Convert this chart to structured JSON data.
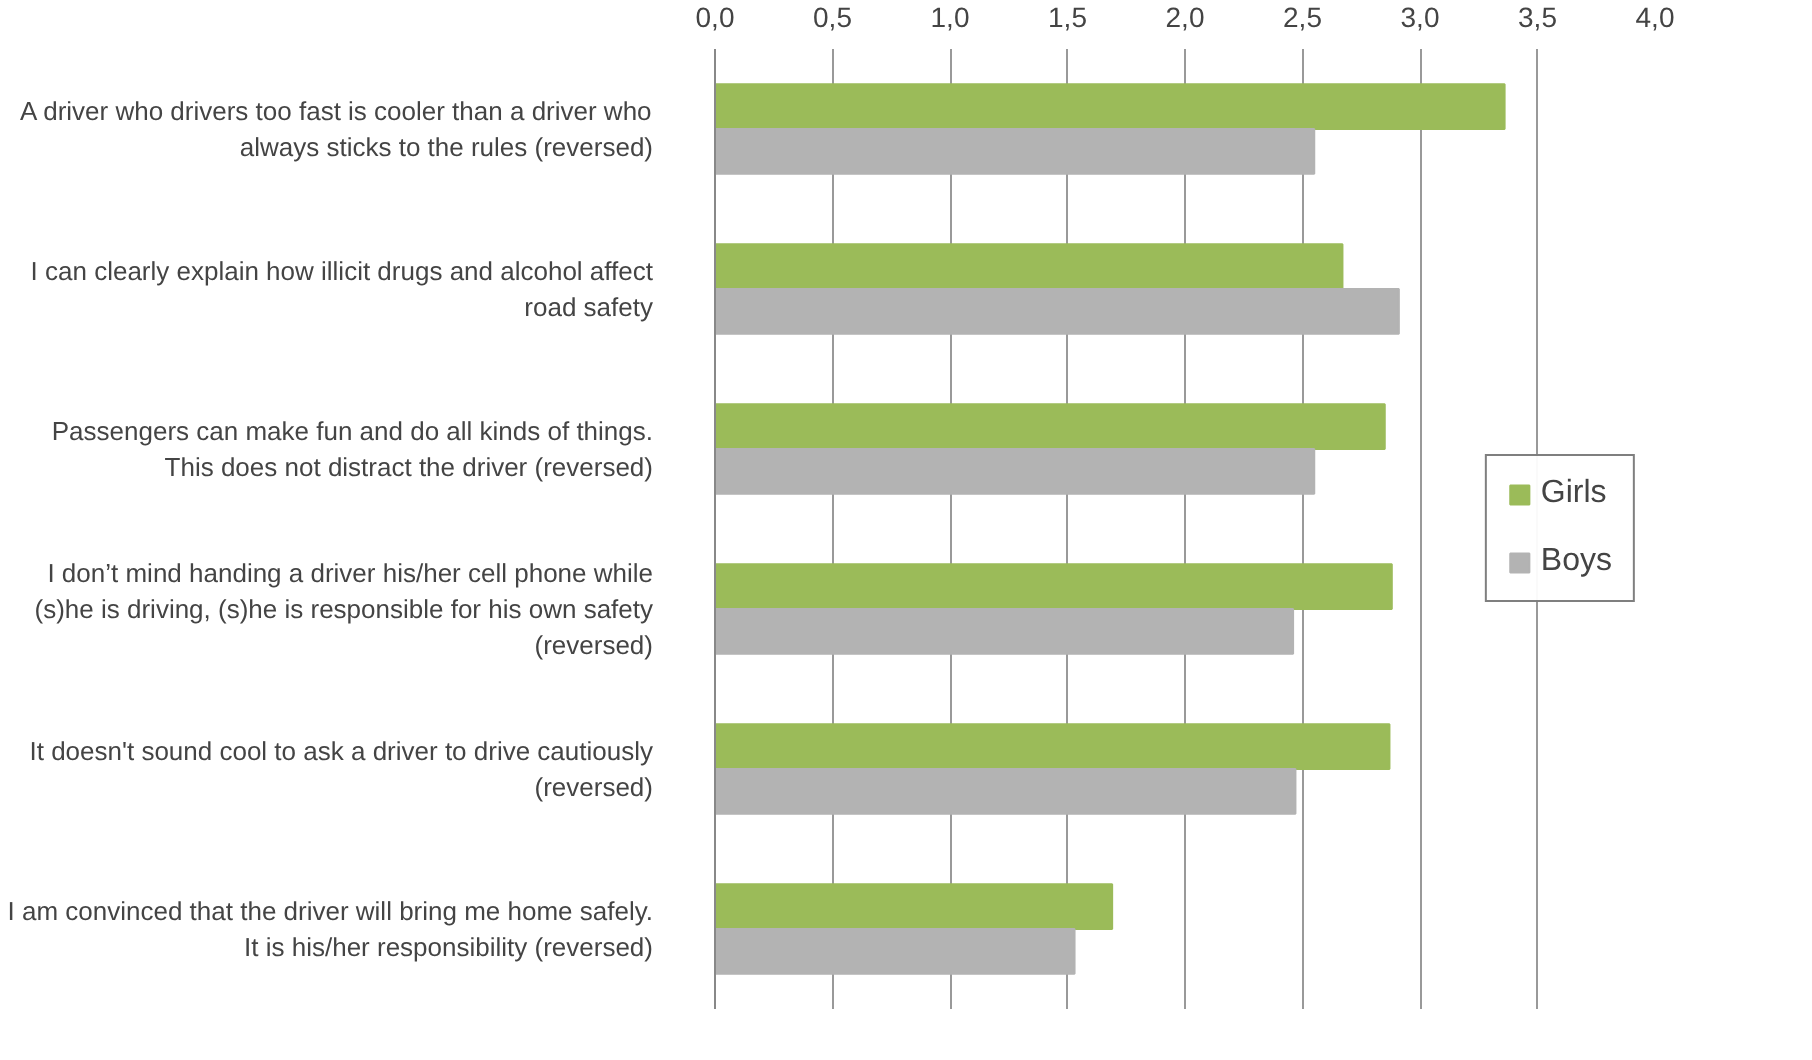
{
  "chart_data": {
    "type": "bar",
    "orientation": "horizontal",
    "categories": [
      "A driver who drivers too fast is cooler than a driver who\nalways sticks to the rules (reversed)",
      "I can clearly explain how illicit drugs and alcohol affect\nroad safety",
      "Passengers can make fun and do all kinds of things.\nThis does not distract the driver (reversed)",
      "I don’t mind handing a driver his/her cell phone while\n(s)he is driving, (s)he is responsible for his own safety\n(reversed)",
      "It doesn't sound cool to ask a driver to drive cautiously\n(reversed)",
      "I am convinced that the driver will bring me home safely.\nIt is his/her responsibility (reversed)"
    ],
    "series": [
      {
        "name": "Girls",
        "color": "#9bbb59",
        "values": [
          3.36,
          2.67,
          2.85,
          2.88,
          2.87,
          1.69
        ]
      },
      {
        "name": "Boys",
        "color": "#b3b3b3",
        "values": [
          2.55,
          2.91,
          2.55,
          2.46,
          2.47,
          1.53
        ]
      }
    ],
    "xlim": [
      0,
      4
    ],
    "xticks": [
      {
        "value": 0,
        "label": "0,0"
      },
      {
        "value": 0.5,
        "label": "0,5"
      },
      {
        "value": 1,
        "label": "1,0"
      },
      {
        "value": 1.5,
        "label": "1,5"
      },
      {
        "value": 2,
        "label": "2,0"
      },
      {
        "value": 2.5,
        "label": "2,5"
      },
      {
        "value": 3,
        "label": "3,0"
      },
      {
        "value": 3.5,
        "label": "3,5"
      },
      {
        "value": 4,
        "label": "4,0"
      }
    ],
    "grid": "x",
    "legend": "right"
  }
}
